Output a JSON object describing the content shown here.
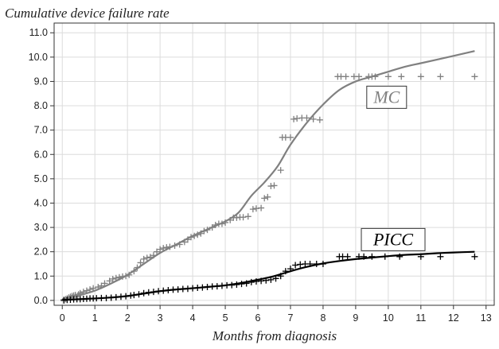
{
  "chart_data": {
    "type": "line",
    "title": "Cumulative device failure rate",
    "xlabel": "Months from diagnosis",
    "ylabel": "",
    "xlim": [
      -0.25,
      13.25
    ],
    "ylim": [
      -0.2,
      11.4
    ],
    "xticks": [
      0,
      1,
      2,
      3,
      4,
      5,
      6,
      7,
      8,
      9,
      10,
      11,
      12,
      13
    ],
    "yticks": [
      0.0,
      1.0,
      2.0,
      3.0,
      4.0,
      5.0,
      6.0,
      7.0,
      8.0,
      9.0,
      10.0,
      11.0
    ],
    "grid": true,
    "series": [
      {
        "name": "MC",
        "color": "#808080",
        "smooth": [
          [
            0,
            0.05
          ],
          [
            0.5,
            0.2
          ],
          [
            1,
            0.4
          ],
          [
            1.5,
            0.7
          ],
          [
            2,
            1.05
          ],
          [
            2.5,
            1.5
          ],
          [
            3,
            1.95
          ],
          [
            3.5,
            2.3
          ],
          [
            4,
            2.65
          ],
          [
            4.5,
            2.95
          ],
          [
            5,
            3.25
          ],
          [
            5.4,
            3.6
          ],
          [
            5.8,
            4.3
          ],
          [
            6.2,
            4.85
          ],
          [
            6.6,
            5.5
          ],
          [
            7,
            6.4
          ],
          [
            7.5,
            7.3
          ],
          [
            8,
            8.05
          ],
          [
            8.5,
            8.65
          ],
          [
            9,
            9.0
          ],
          [
            9.5,
            9.2
          ],
          [
            10,
            9.4
          ],
          [
            10.5,
            9.6
          ],
          [
            11,
            9.75
          ],
          [
            11.5,
            9.9
          ],
          [
            12,
            10.05
          ],
          [
            12.65,
            10.25
          ]
        ],
        "censored": [
          [
            0.05,
            0.03
          ],
          [
            0.1,
            0.05
          ],
          [
            0.15,
            0.08
          ],
          [
            0.2,
            0.12
          ],
          [
            0.25,
            0.15
          ],
          [
            0.3,
            0.18
          ],
          [
            0.35,
            0.2
          ],
          [
            0.4,
            0.22
          ],
          [
            0.5,
            0.25
          ],
          [
            0.55,
            0.3
          ],
          [
            0.65,
            0.35
          ],
          [
            0.75,
            0.4
          ],
          [
            0.85,
            0.45
          ],
          [
            0.95,
            0.5
          ],
          [
            1.1,
            0.55
          ],
          [
            1.2,
            0.6
          ],
          [
            1.3,
            0.7
          ],
          [
            1.45,
            0.8
          ],
          [
            1.55,
            0.88
          ],
          [
            1.65,
            0.92
          ],
          [
            1.75,
            0.95
          ],
          [
            1.85,
            0.98
          ],
          [
            1.95,
            1.0
          ],
          [
            2.05,
            1.05
          ],
          [
            2.2,
            1.2
          ],
          [
            2.3,
            1.35
          ],
          [
            2.4,
            1.55
          ],
          [
            2.5,
            1.7
          ],
          [
            2.6,
            1.75
          ],
          [
            2.7,
            1.78
          ],
          [
            2.8,
            1.85
          ],
          [
            2.9,
            2.0
          ],
          [
            3.0,
            2.1
          ],
          [
            3.1,
            2.15
          ],
          [
            3.2,
            2.18
          ],
          [
            3.3,
            2.2
          ],
          [
            3.45,
            2.25
          ],
          [
            3.6,
            2.3
          ],
          [
            3.75,
            2.4
          ],
          [
            3.85,
            2.5
          ],
          [
            3.95,
            2.6
          ],
          [
            4.05,
            2.65
          ],
          [
            4.15,
            2.7
          ],
          [
            4.25,
            2.75
          ],
          [
            4.35,
            2.85
          ],
          [
            4.45,
            2.9
          ],
          [
            4.6,
            3.0
          ],
          [
            4.7,
            3.1
          ],
          [
            4.8,
            3.15
          ],
          [
            4.9,
            3.15
          ],
          [
            5.0,
            3.2
          ],
          [
            5.15,
            3.3
          ],
          [
            5.25,
            3.4
          ],
          [
            5.35,
            3.4
          ],
          [
            5.45,
            3.42
          ],
          [
            5.55,
            3.42
          ],
          [
            5.7,
            3.45
          ],
          [
            5.85,
            3.75
          ],
          [
            5.95,
            3.78
          ],
          [
            6.1,
            3.8
          ],
          [
            6.2,
            4.2
          ],
          [
            6.3,
            4.25
          ],
          [
            6.4,
            4.7
          ],
          [
            6.5,
            4.72
          ],
          [
            6.7,
            5.35
          ],
          [
            6.75,
            6.7
          ],
          [
            6.85,
            6.7
          ],
          [
            7.0,
            6.7
          ],
          [
            7.1,
            7.45
          ],
          [
            7.2,
            7.48
          ],
          [
            7.35,
            7.5
          ],
          [
            7.5,
            7.5
          ],
          [
            7.7,
            7.45
          ],
          [
            7.9,
            7.42
          ],
          [
            8.45,
            9.2
          ],
          [
            8.55,
            9.2
          ],
          [
            8.7,
            9.2
          ],
          [
            8.95,
            9.2
          ],
          [
            9.1,
            9.2
          ],
          [
            9.4,
            9.2
          ],
          [
            9.5,
            9.2
          ],
          [
            9.6,
            9.2
          ],
          [
            10.0,
            9.2
          ],
          [
            10.4,
            9.2
          ],
          [
            11.0,
            9.2
          ],
          [
            11.6,
            9.2
          ],
          [
            12.65,
            9.2
          ]
        ]
      },
      {
        "name": "PICC",
        "color": "#000000",
        "smooth": [
          [
            0,
            0.02
          ],
          [
            0.5,
            0.05
          ],
          [
            1,
            0.08
          ],
          [
            1.5,
            0.12
          ],
          [
            2,
            0.18
          ],
          [
            2.5,
            0.28
          ],
          [
            3,
            0.38
          ],
          [
            3.5,
            0.45
          ],
          [
            4,
            0.5
          ],
          [
            4.5,
            0.56
          ],
          [
            5,
            0.62
          ],
          [
            5.5,
            0.72
          ],
          [
            6,
            0.85
          ],
          [
            6.5,
            1.0
          ],
          [
            7,
            1.2
          ],
          [
            7.5,
            1.38
          ],
          [
            8,
            1.52
          ],
          [
            8.5,
            1.62
          ],
          [
            9,
            1.7
          ],
          [
            9.5,
            1.76
          ],
          [
            10,
            1.82
          ],
          [
            10.5,
            1.87
          ],
          [
            11,
            1.9
          ],
          [
            11.5,
            1.94
          ],
          [
            12,
            1.97
          ],
          [
            12.65,
            2.0
          ]
        ],
        "censored": [
          [
            0.05,
            0.0
          ],
          [
            0.15,
            0.02
          ],
          [
            0.25,
            0.03
          ],
          [
            0.35,
            0.04
          ],
          [
            0.45,
            0.05
          ],
          [
            0.55,
            0.05
          ],
          [
            0.65,
            0.06
          ],
          [
            0.75,
            0.07
          ],
          [
            0.85,
            0.08
          ],
          [
            0.95,
            0.08
          ],
          [
            1.05,
            0.09
          ],
          [
            1.2,
            0.1
          ],
          [
            1.35,
            0.1
          ],
          [
            1.5,
            0.11
          ],
          [
            1.65,
            0.13
          ],
          [
            1.8,
            0.15
          ],
          [
            1.95,
            0.17
          ],
          [
            2.1,
            0.2
          ],
          [
            2.2,
            0.22
          ],
          [
            2.35,
            0.25
          ],
          [
            2.5,
            0.3
          ],
          [
            2.65,
            0.33
          ],
          [
            2.8,
            0.35
          ],
          [
            2.95,
            0.38
          ],
          [
            3.1,
            0.4
          ],
          [
            3.25,
            0.42
          ],
          [
            3.4,
            0.44
          ],
          [
            3.55,
            0.45
          ],
          [
            3.7,
            0.47
          ],
          [
            3.85,
            0.48
          ],
          [
            4.0,
            0.5
          ],
          [
            4.15,
            0.52
          ],
          [
            4.3,
            0.53
          ],
          [
            4.45,
            0.55
          ],
          [
            4.6,
            0.57
          ],
          [
            4.75,
            0.58
          ],
          [
            4.9,
            0.6
          ],
          [
            5.05,
            0.62
          ],
          [
            5.2,
            0.63
          ],
          [
            5.35,
            0.65
          ],
          [
            5.5,
            0.68
          ],
          [
            5.65,
            0.7
          ],
          [
            5.8,
            0.75
          ],
          [
            5.95,
            0.78
          ],
          [
            6.1,
            0.8
          ],
          [
            6.25,
            0.82
          ],
          [
            6.4,
            0.85
          ],
          [
            6.55,
            0.9
          ],
          [
            6.7,
            1.0
          ],
          [
            6.85,
            1.2
          ],
          [
            7.0,
            1.3
          ],
          [
            7.15,
            1.45
          ],
          [
            7.3,
            1.48
          ],
          [
            7.45,
            1.5
          ],
          [
            7.6,
            1.5
          ],
          [
            7.8,
            1.5
          ],
          [
            8.0,
            1.5
          ],
          [
            8.5,
            1.8
          ],
          [
            8.6,
            1.8
          ],
          [
            8.75,
            1.8
          ],
          [
            9.1,
            1.8
          ],
          [
            9.25,
            1.8
          ],
          [
            9.5,
            1.8
          ],
          [
            9.9,
            1.8
          ],
          [
            10.35,
            1.8
          ],
          [
            11.0,
            1.8
          ],
          [
            11.6,
            1.8
          ],
          [
            12.65,
            1.8
          ]
        ]
      }
    ],
    "annotations": [
      {
        "text": "MC",
        "x": 9.95,
        "y": 8.35,
        "color": "#808080"
      },
      {
        "text": "PICC",
        "x": 10.15,
        "y": 2.5,
        "color": "#000000"
      }
    ]
  }
}
